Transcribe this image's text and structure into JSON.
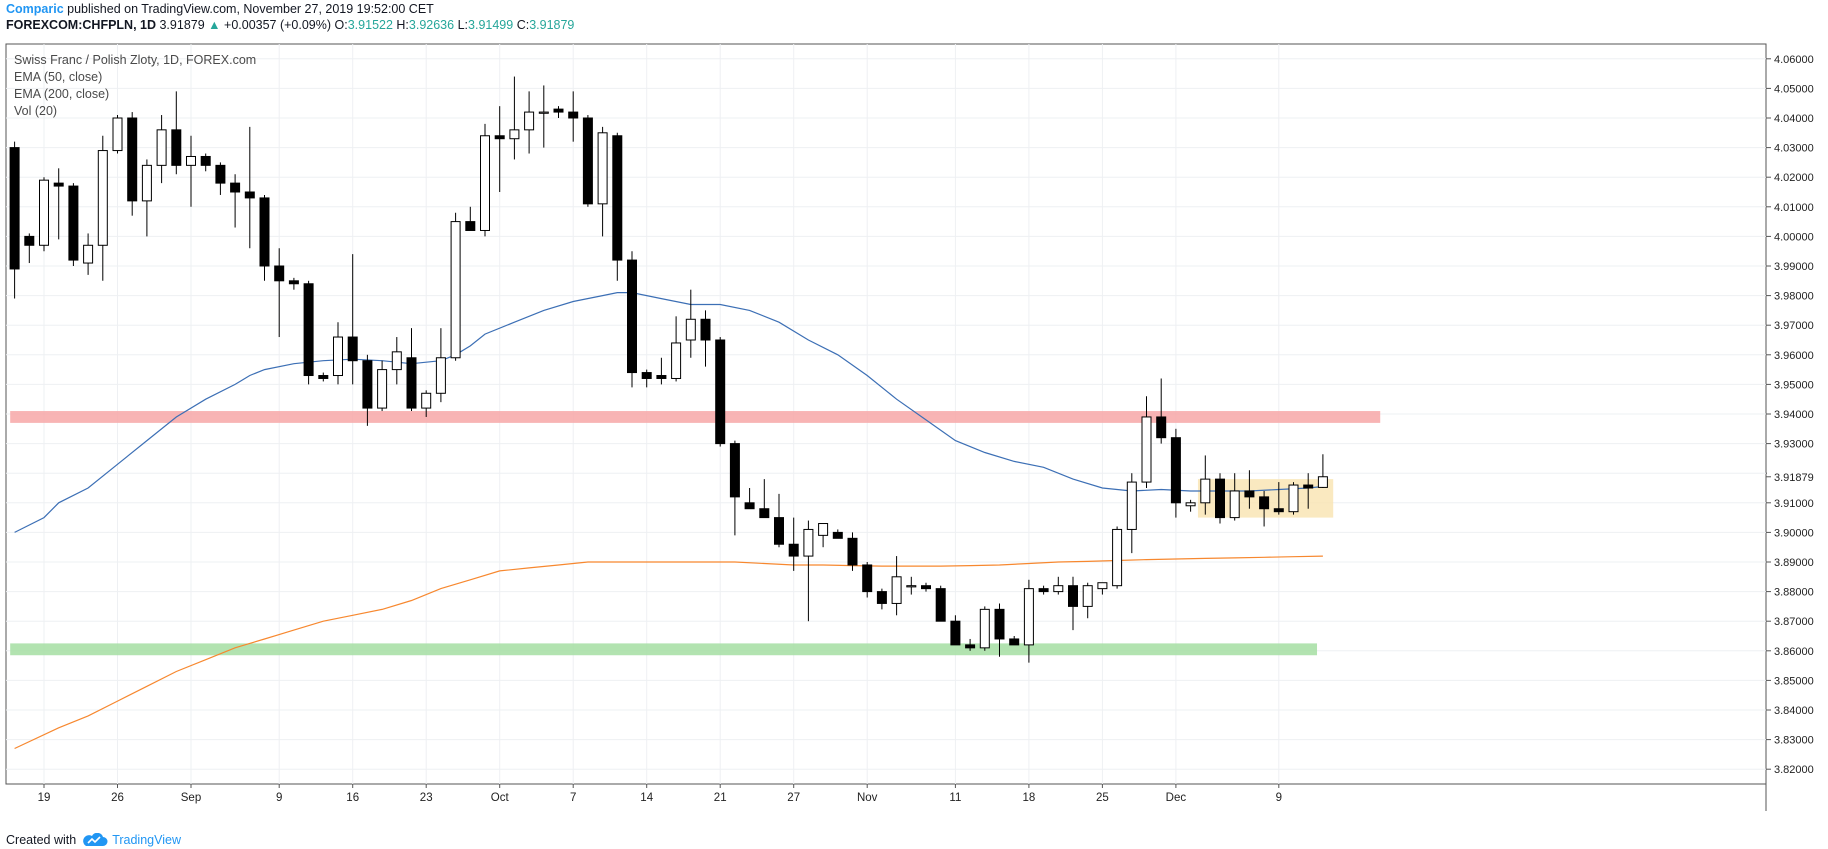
{
  "header": {
    "author": "Comparic",
    "published_text": "published on TradingView.com, November 27, 2019 19:52:00 CET",
    "symbol": "FOREXCOM:CHFPLN, 1D",
    "last": "3.91879",
    "arrow": "▲",
    "change": "+0.00357 (+0.09%)",
    "o_label": "O:",
    "o_val": "3.91522",
    "h_label": "H:",
    "h_val": "3.92636",
    "l_label": "L:",
    "l_val": "3.91499",
    "c_label": "C:",
    "c_val": "3.91879"
  },
  "legend": {
    "title": "Swiss Franc / Polish Zloty, 1D, FOREX.com",
    "ema50": "EMA (50, close)",
    "ema200": "EMA (200, close)",
    "vol": "Vol (20)"
  },
  "footer": {
    "created_with": "Created with",
    "brand": "TradingView"
  },
  "colors": {
    "ema50": "#3c6fb5",
    "ema200": "#f7882f",
    "resistance_zone": "#f7a7a7",
    "support_zone": "#a5dea2",
    "consolidation_box": "#f9e4b0",
    "price_label_bg": "#ffffff",
    "candle_up": "#ffffff",
    "candle_down": "#000000"
  },
  "chart_data": {
    "type": "candlestick",
    "symbol": "FOREXCOM:CHFPLN",
    "interval": "1D",
    "ylim": [
      3.815,
      4.065
    ],
    "y_ticks": [
      "4.06000",
      "4.05000",
      "4.04000",
      "4.03000",
      "4.02000",
      "4.01000",
      "4.00000",
      "3.99000",
      "3.98000",
      "3.97000",
      "3.96000",
      "3.95000",
      "3.94000",
      "3.93000",
      "3.92000",
      "3.91000",
      "3.90000",
      "3.89000",
      "3.88000",
      "3.87000",
      "3.86000",
      "3.85000",
      "3.84000",
      "3.83000",
      "3.82000"
    ],
    "x_axis": {
      "first_bar_index": -2,
      "last_index": 82,
      "tick_labels": [
        {
          "idx": 0,
          "label": "19"
        },
        {
          "idx": 5,
          "label": "26"
        },
        {
          "idx": 10,
          "label": "Sep"
        },
        {
          "idx": 16,
          "label": "9"
        },
        {
          "idx": 21,
          "label": "16"
        },
        {
          "idx": 26,
          "label": "23"
        },
        {
          "idx": 31,
          "label": "Oct"
        },
        {
          "idx": 36,
          "label": "7"
        },
        {
          "idx": 41,
          "label": "14"
        },
        {
          "idx": 46,
          "label": "21"
        },
        {
          "idx": 51,
          "label": "27"
        },
        {
          "idx": 56,
          "label": "Nov"
        },
        {
          "idx": 62,
          "label": "11"
        },
        {
          "idx": 67,
          "label": "18"
        },
        {
          "idx": 72,
          "label": "25"
        },
        {
          "idx": 77,
          "label": "Dec"
        },
        {
          "idx": 84,
          "label": "9"
        }
      ]
    },
    "last_price": "3.91879",
    "candles": [
      [
        4.03,
        4.032,
        3.979,
        3.989
      ],
      [
        4.0,
        4.001,
        3.991,
        3.997
      ],
      [
        3.997,
        4.02,
        3.995,
        4.019
      ],
      [
        4.018,
        4.023,
        3.999,
        4.017
      ],
      [
        4.017,
        4.018,
        3.99,
        3.992
      ],
      [
        3.991,
        4.001,
        3.987,
        3.997
      ],
      [
        3.997,
        4.034,
        3.985,
        4.029
      ],
      [
        4.029,
        4.041,
        4.028,
        4.04
      ],
      [
        4.04,
        4.042,
        4.007,
        4.012
      ],
      [
        4.012,
        4.026,
        4.0,
        4.024
      ],
      [
        4.024,
        4.041,
        4.018,
        4.036
      ],
      [
        4.036,
        4.049,
        4.021,
        4.024
      ],
      [
        4.024,
        4.034,
        4.01,
        4.027
      ],
      [
        4.027,
        4.028,
        4.022,
        4.024
      ],
      [
        4.024,
        4.025,
        4.014,
        4.018
      ],
      [
        4.018,
        4.021,
        4.003,
        4.015
      ],
      [
        4.015,
        4.037,
        3.996,
        4.013
      ],
      [
        4.013,
        4.014,
        3.985,
        3.99
      ],
      [
        3.99,
        3.996,
        3.966,
        3.985
      ],
      [
        3.985,
        3.986,
        3.982,
        3.984
      ],
      [
        3.984,
        3.985,
        3.95,
        3.953
      ],
      [
        3.953,
        3.954,
        3.951,
        3.952
      ],
      [
        3.953,
        3.971,
        3.95,
        3.966
      ],
      [
        3.966,
        3.994,
        3.95,
        3.958
      ],
      [
        3.958,
        3.96,
        3.936,
        3.942
      ],
      [
        3.942,
        3.958,
        3.941,
        3.955
      ],
      [
        3.955,
        3.966,
        3.95,
        3.961
      ],
      [
        3.959,
        3.969,
        3.941,
        3.942
      ],
      [
        3.942,
        3.948,
        3.939,
        3.947
      ],
      [
        3.947,
        3.969,
        3.944,
        3.959
      ],
      [
        3.959,
        4.008,
        3.958,
        4.005
      ],
      [
        4.005,
        4.01,
        4.002,
        4.002
      ],
      [
        4.002,
        4.038,
        4.0,
        4.034
      ],
      [
        4.034,
        4.044,
        4.015,
        4.033
      ],
      [
        4.033,
        4.054,
        4.026,
        4.036
      ],
      [
        4.036,
        4.049,
        4.028,
        4.042
      ],
      [
        4.042,
        4.051,
        4.03,
        4.042
      ],
      [
        4.043,
        4.044,
        4.04,
        4.042
      ],
      [
        4.042,
        4.049,
        4.032,
        4.04
      ],
      [
        4.04,
        4.041,
        4.01,
        4.011
      ],
      [
        4.011,
        4.037,
        4.0,
        4.035
      ],
      [
        4.034,
        4.035,
        3.985,
        3.992
      ],
      [
        3.992,
        3.995,
        3.949,
        3.954
      ],
      [
        3.954,
        3.955,
        3.949,
        3.952
      ],
      [
        3.953,
        3.959,
        3.95,
        3.952
      ],
      [
        3.952,
        3.973,
        3.951,
        3.964
      ],
      [
        3.965,
        3.982,
        3.959,
        3.972
      ],
      [
        3.972,
        3.975,
        3.956,
        3.965
      ],
      [
        3.965,
        3.966,
        3.929,
        3.93
      ],
      [
        3.93,
        3.931,
        3.899,
        3.912
      ],
      [
        3.91,
        3.915,
        3.908,
        3.908
      ],
      [
        3.908,
        3.918,
        3.905,
        3.905
      ],
      [
        3.905,
        3.913,
        3.895,
        3.896
      ],
      [
        3.896,
        3.905,
        3.887,
        3.892
      ],
      [
        3.892,
        3.904,
        3.87,
        3.901
      ],
      [
        3.899,
        3.903,
        3.895,
        3.903
      ],
      [
        3.9,
        3.901,
        3.898,
        3.898
      ],
      [
        3.898,
        3.9,
        3.887,
        3.889
      ],
      [
        3.889,
        3.89,
        3.878,
        3.88
      ],
      [
        3.88,
        3.881,
        3.874,
        3.876
      ],
      [
        3.876,
        3.892,
        3.872,
        3.885
      ],
      [
        3.882,
        3.885,
        3.879,
        3.882
      ],
      [
        3.882,
        3.883,
        3.88,
        3.881
      ],
      [
        3.881,
        3.882,
        3.871,
        3.87
      ],
      [
        3.87,
        3.872,
        3.863,
        3.862
      ],
      [
        3.862,
        3.864,
        3.86,
        3.861
      ],
      [
        3.861,
        3.875,
        3.86,
        3.874
      ],
      [
        3.874,
        3.876,
        3.858,
        3.864
      ],
      [
        3.864,
        3.865,
        3.862,
        3.862
      ],
      [
        3.862,
        3.884,
        3.856,
        3.881
      ],
      [
        3.881,
        3.882,
        3.879,
        3.88
      ],
      [
        3.88,
        3.885,
        3.879,
        3.882
      ],
      [
        3.882,
        3.885,
        3.867,
        3.875
      ],
      [
        3.875,
        3.883,
        3.871,
        3.882
      ],
      [
        3.881,
        3.883,
        3.879,
        3.883
      ],
      [
        3.882,
        3.902,
        3.881,
        3.901
      ],
      [
        3.901,
        3.92,
        3.893,
        3.917
      ],
      [
        3.917,
        3.946,
        3.915,
        3.939
      ],
      [
        3.939,
        3.952,
        3.93,
        3.932
      ],
      [
        3.932,
        3.935,
        3.905,
        3.91
      ],
      [
        3.909,
        3.911,
        3.907,
        3.91
      ],
      [
        3.91,
        3.926,
        3.906,
        3.918
      ],
      [
        3.918,
        3.92,
        3.903,
        3.905
      ],
      [
        3.905,
        3.92,
        3.904,
        3.914
      ],
      [
        3.914,
        3.921,
        3.908,
        3.912
      ],
      [
        3.912,
        3.914,
        3.902,
        3.908
      ],
      [
        3.908,
        3.917,
        3.906,
        3.907
      ],
      [
        3.907,
        3.917,
        3.906,
        3.916
      ],
      [
        3.916,
        3.92,
        3.908,
        3.915
      ],
      [
        3.9152,
        3.9264,
        3.915,
        3.9188
      ]
    ],
    "ema50": [
      [
        -2,
        3.9
      ],
      [
        0,
        3.905
      ],
      [
        1,
        3.91
      ],
      [
        3,
        3.915
      ],
      [
        5,
        3.923
      ],
      [
        7,
        3.931
      ],
      [
        9,
        3.939
      ],
      [
        11,
        3.945
      ],
      [
        13,
        3.95
      ],
      [
        14,
        3.953
      ],
      [
        15,
        3.955
      ],
      [
        17,
        3.957
      ],
      [
        19,
        3.958
      ],
      [
        21,
        3.9585
      ],
      [
        23,
        3.958
      ],
      [
        25,
        3.957
      ],
      [
        27,
        3.958
      ],
      [
        28,
        3.96
      ],
      [
        29,
        3.963
      ],
      [
        30,
        3.967
      ],
      [
        32,
        3.971
      ],
      [
        34,
        3.975
      ],
      [
        36,
        3.978
      ],
      [
        38,
        3.98
      ],
      [
        39,
        3.981
      ],
      [
        40,
        3.981
      ],
      [
        41,
        3.98
      ],
      [
        42,
        3.979
      ],
      [
        44,
        3.977
      ],
      [
        46,
        3.977
      ],
      [
        48,
        3.975
      ],
      [
        50,
        3.971
      ],
      [
        52,
        3.965
      ],
      [
        54,
        3.96
      ],
      [
        56,
        3.953
      ],
      [
        58,
        3.945
      ],
      [
        60,
        3.938
      ],
      [
        62,
        3.931
      ],
      [
        64,
        3.927
      ],
      [
        66,
        3.924
      ],
      [
        68,
        3.922
      ],
      [
        70,
        3.918
      ],
      [
        72,
        3.915
      ],
      [
        74,
        3.914
      ],
      [
        76,
        3.9145
      ],
      [
        78,
        3.914
      ],
      [
        80,
        3.914
      ],
      [
        82,
        3.914
      ],
      [
        84,
        3.9145
      ],
      [
        86,
        3.915
      ],
      [
        87,
        3.9155
      ]
    ],
    "ema200": [
      [
        -2,
        3.827
      ],
      [
        1,
        3.834
      ],
      [
        3,
        3.838
      ],
      [
        5,
        3.843
      ],
      [
        7,
        3.848
      ],
      [
        9,
        3.853
      ],
      [
        11,
        3.857
      ],
      [
        13,
        3.861
      ],
      [
        15,
        3.864
      ],
      [
        17,
        3.867
      ],
      [
        19,
        3.87
      ],
      [
        21,
        3.872
      ],
      [
        23,
        3.874
      ],
      [
        25,
        3.877
      ],
      [
        27,
        3.881
      ],
      [
        29,
        3.884
      ],
      [
        31,
        3.887
      ],
      [
        33,
        3.888
      ],
      [
        35,
        3.889
      ],
      [
        37,
        3.89
      ],
      [
        39,
        3.89
      ],
      [
        41,
        3.89
      ],
      [
        43,
        3.89
      ],
      [
        45,
        3.89
      ],
      [
        47,
        3.89
      ],
      [
        49,
        3.8895
      ],
      [
        51,
        3.889
      ],
      [
        53,
        3.889
      ],
      [
        55,
        3.8888
      ],
      [
        57,
        3.8886
      ],
      [
        59,
        3.8886
      ],
      [
        61,
        3.8886
      ],
      [
        63,
        3.8888
      ],
      [
        65,
        3.889
      ],
      [
        67,
        3.8895
      ],
      [
        69,
        3.89
      ],
      [
        71,
        3.8902
      ],
      [
        73,
        3.8905
      ],
      [
        75,
        3.8908
      ],
      [
        77,
        3.891
      ],
      [
        79,
        3.8912
      ],
      [
        81,
        3.8914
      ],
      [
        83,
        3.8916
      ],
      [
        85,
        3.8918
      ],
      [
        87,
        3.892
      ]
    ],
    "zones": [
      {
        "name": "resistance",
        "y_low": 3.937,
        "y_high": 3.941,
        "x_from": -2.3,
        "x_to": 90.9
      },
      {
        "name": "support",
        "y_low": 3.8585,
        "y_high": 3.8625,
        "x_from": -2.3,
        "x_to": 86.6
      }
    ],
    "consolidation": {
      "y_low": 3.905,
      "y_high": 3.918,
      "x_from": 78.5,
      "x_to": 87.7
    }
  }
}
